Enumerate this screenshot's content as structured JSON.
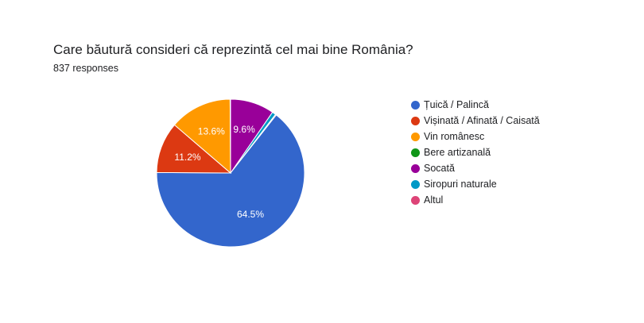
{
  "header": {
    "question": "Care băutură consideri că reprezintă cel mai bine România?",
    "responses": "837 responses"
  },
  "chart_data": {
    "type": "pie",
    "title": "Care băutură consideri că reprezintă cel mai bine România?",
    "total_responses": 837,
    "legend_position": "right",
    "start": "top, clockwise",
    "slices": [
      {
        "label": "Țuică / Palincă",
        "value": 64.5,
        "color": "#3366cc",
        "data_label": "64.5%"
      },
      {
        "label": "Vișinată / Afinată / Caisată",
        "value": 11.2,
        "color": "#dc3912",
        "data_label": "11.2%"
      },
      {
        "label": "Vin românesc",
        "value": 13.6,
        "color": "#ff9900",
        "data_label": "13.6%"
      },
      {
        "label": "Bere artizanală",
        "value": 0.1,
        "color": "#109618",
        "data_label": ""
      },
      {
        "label": "Socată",
        "value": 9.6,
        "color": "#990099",
        "data_label": "9.6%"
      },
      {
        "label": "Siropuri naturale",
        "value": 0.8,
        "color": "#0099c6",
        "data_label": ""
      },
      {
        "label": "Altul",
        "value": 0.2,
        "color": "#dd4477",
        "data_label": ""
      }
    ],
    "draw_order": [
      4,
      5,
      6,
      0,
      1,
      2,
      3
    ]
  }
}
